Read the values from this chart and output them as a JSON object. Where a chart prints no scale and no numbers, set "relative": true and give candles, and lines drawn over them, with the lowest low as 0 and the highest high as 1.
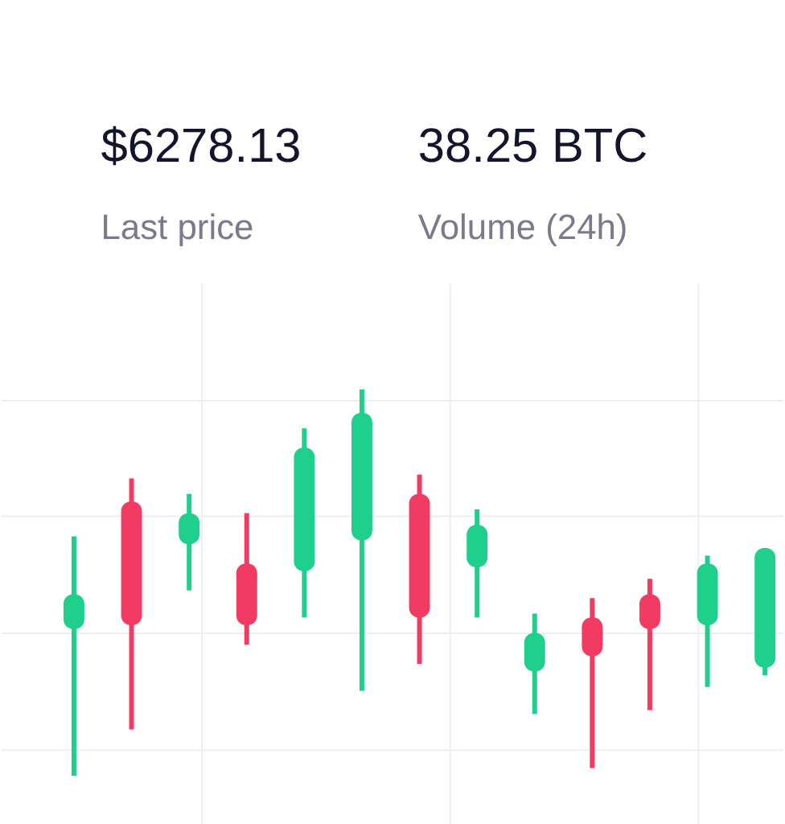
{
  "chart_data": {
    "type": "candlestick",
    "relative": true,
    "grid": true,
    "annotations": [
      "$6278.13",
      "Last price",
      "38.25 BTC",
      "Volume (24h)"
    ],
    "categories": [
      null,
      null,
      null,
      null,
      null,
      null,
      null,
      null,
      null,
      null,
      null,
      null,
      null
    ],
    "ohlc": [
      [
        0.38,
        0.62,
        0,
        0.47
      ],
      [
        0.71,
        0.77,
        0.12,
        0.39
      ],
      [
        0.6,
        0.73,
        0.48,
        0.68
      ],
      [
        0.55,
        0.68,
        0.34,
        0.39
      ],
      [
        0.53,
        0.9,
        0.41,
        0.85
      ],
      [
        0.61,
        1,
        0.22,
        0.94
      ],
      [
        0.73,
        0.78,
        0.29,
        0.41
      ],
      [
        0.54,
        0.69,
        0.41,
        0.65
      ],
      [
        0.27,
        0.42,
        0.16,
        0.37
      ],
      [
        0.41,
        0.46,
        0.02,
        0.31
      ],
      [
        0.47,
        0.51,
        0.17,
        0.38
      ],
      [
        0.39,
        0.57,
        0.23,
        0.55
      ],
      [
        0.28,
        0.59,
        0.26,
        0.59
      ]
    ],
    "colors": [
      "#1fcf8c",
      "#f23b62",
      "#1fcf8c",
      "#f23b62",
      "#1fcf8c",
      "#1fcf8c",
      "#f23b62",
      "#1fcf8c",
      "#1fcf8c",
      "#f23b62",
      "#f23b62",
      "#1fcf8c",
      "#1fcf8c"
    ]
  }
}
